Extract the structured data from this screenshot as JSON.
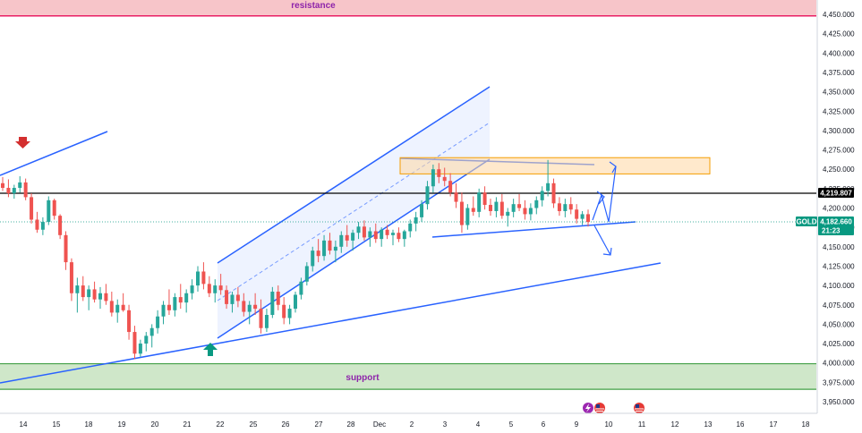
{
  "chart_data": {
    "type": "candlestick",
    "symbol": "GOLD",
    "last_price": "4,182.660",
    "countdown": "21:23",
    "black_line_price": "4,219.807",
    "ylim": [
      3940,
      4465
    ],
    "y_ticks": [
      "4,450.000",
      "4,425.000",
      "4,400.000",
      "4,375.000",
      "4,350.000",
      "4,325.000",
      "4,300.000",
      "4,275.000",
      "4,250.000",
      "4,225.000",
      "4,200.000",
      "4,175.000",
      "4,150.000",
      "4,125.000",
      "4,100.000",
      "4,075.000",
      "4,050.000",
      "4,025.000",
      "4,000.000",
      "3,975.000",
      "3,950.000"
    ],
    "x_ticks": [
      "14",
      "15",
      "18",
      "19",
      "20",
      "21",
      "22",
      "25",
      "26",
      "27",
      "28",
      "Dec",
      "2",
      "3",
      "4",
      "5",
      "6",
      "9",
      "10",
      "11",
      "12",
      "13",
      "16",
      "17",
      "18"
    ],
    "zones": {
      "resistance": {
        "label": "resistance",
        "from": 4448,
        "to": 4470,
        "color": "#f7c5c9"
      },
      "support": {
        "label": "support",
        "from": 3966,
        "to": 3999,
        "color": "#cfe7c9"
      },
      "sell_box": {
        "from": 4244,
        "to": 4265,
        "color": "#ffd7a3"
      }
    },
    "colors": {
      "up": "#26a69a",
      "down": "#ef5350",
      "trend": "#2962ff",
      "price_tag": "#089981",
      "resistance_line": "#e91e63",
      "support_line": "#43a047"
    },
    "candles": [
      [
        4232,
        4240,
        4222,
        4226
      ],
      [
        4226,
        4237,
        4214,
        4219
      ],
      [
        4219,
        4230,
        4212,
        4226
      ],
      [
        4226,
        4241,
        4220,
        4233
      ],
      [
        4233,
        4238,
        4210,
        4214
      ],
      [
        4214,
        4219,
        4180,
        4185
      ],
      [
        4185,
        4195,
        4168,
        4172
      ],
      [
        4172,
        4188,
        4165,
        4182
      ],
      [
        4182,
        4215,
        4178,
        4210
      ],
      [
        4210,
        4212,
        4185,
        4190
      ],
      [
        4190,
        4192,
        4160,
        4165
      ],
      [
        4165,
        4170,
        4120,
        4130
      ],
      [
        4130,
        4135,
        4080,
        4090
      ],
      [
        4090,
        4110,
        4065,
        4100
      ],
      [
        4100,
        4112,
        4080,
        4085
      ],
      [
        4085,
        4100,
        4068,
        4095
      ],
      [
        4095,
        4105,
        4078,
        4082
      ],
      [
        4082,
        4098,
        4070,
        4090
      ],
      [
        4090,
        4102,
        4075,
        4080
      ],
      [
        4080,
        4092,
        4060,
        4065
      ],
      [
        4065,
        4082,
        4052,
        4075
      ],
      [
        4075,
        4090,
        4066,
        4068
      ],
      [
        4068,
        4075,
        4030,
        4040
      ],
      [
        4040,
        4048,
        4005,
        4012
      ],
      [
        4012,
        4030,
        4008,
        4025
      ],
      [
        4025,
        4040,
        4015,
        4035
      ],
      [
        4035,
        4050,
        4020,
        4045
      ],
      [
        4045,
        4068,
        4038,
        4060
      ],
      [
        4060,
        4080,
        4050,
        4075
      ],
      [
        4075,
        4095,
        4062,
        4068
      ],
      [
        4068,
        4090,
        4060,
        4085
      ],
      [
        4085,
        4102,
        4070,
        4078
      ],
      [
        4078,
        4095,
        4065,
        4090
      ],
      [
        4090,
        4108,
        4082,
        4100
      ],
      [
        4100,
        4125,
        4092,
        4118
      ],
      [
        4118,
        4130,
        4095,
        4102
      ],
      [
        4102,
        4112,
        4085,
        4090
      ],
      [
        4090,
        4108,
        4078,
        4100
      ],
      [
        4100,
        4115,
        4088,
        4094
      ],
      [
        4094,
        4100,
        4070,
        4076
      ],
      [
        4076,
        4092,
        4065,
        4088
      ],
      [
        4088,
        4098,
        4072,
        4080
      ],
      [
        4080,
        4090,
        4060,
        4066
      ],
      [
        4066,
        4080,
        4050,
        4075
      ],
      [
        4075,
        4090,
        4062,
        4070
      ],
      [
        4070,
        4082,
        4038,
        4045
      ],
      [
        4045,
        4070,
        4040,
        4062
      ],
      [
        4062,
        4098,
        4058,
        4092
      ],
      [
        4092,
        4100,
        4068,
        4075
      ],
      [
        4075,
        4085,
        4050,
        4058
      ],
      [
        4058,
        4075,
        4050,
        4070
      ],
      [
        4070,
        4092,
        4065,
        4088
      ],
      [
        4088,
        4110,
        4082,
        4105
      ],
      [
        4105,
        4130,
        4100,
        4125
      ],
      [
        4125,
        4150,
        4118,
        4145
      ],
      [
        4145,
        4160,
        4130,
        4138
      ],
      [
        4138,
        4165,
        4132,
        4158
      ],
      [
        4158,
        4168,
        4140,
        4145
      ],
      [
        4145,
        4158,
        4130,
        4150
      ],
      [
        4150,
        4170,
        4142,
        4165
      ],
      [
        4165,
        4178,
        4150,
        4158
      ],
      [
        4158,
        4172,
        4145,
        4168
      ],
      [
        4168,
        4182,
        4160,
        4176
      ],
      [
        4176,
        4184,
        4158,
        4162
      ],
      [
        4162,
        4175,
        4150,
        4170
      ],
      [
        4170,
        4180,
        4155,
        4160
      ],
      [
        4160,
        4175,
        4150,
        4172
      ],
      [
        4172,
        4178,
        4160,
        4165
      ],
      [
        4165,
        4172,
        4152,
        4168
      ],
      [
        4168,
        4175,
        4156,
        4160
      ],
      [
        4160,
        4172,
        4150,
        4170
      ],
      [
        4170,
        4185,
        4162,
        4180
      ],
      [
        4180,
        4195,
        4170,
        4188
      ],
      [
        4188,
        4210,
        4182,
        4205
      ],
      [
        4205,
        4235,
        4198,
        4228
      ],
      [
        4228,
        4256,
        4220,
        4250
      ],
      [
        4250,
        4258,
        4232,
        4240
      ],
      [
        4240,
        4252,
        4228,
        4235
      ],
      [
        4235,
        4245,
        4215,
        4220
      ],
      [
        4220,
        4232,
        4200,
        4208
      ],
      [
        4208,
        4220,
        4168,
        4178
      ],
      [
        4178,
        4205,
        4172,
        4200
      ],
      [
        4200,
        4215,
        4190,
        4195
      ],
      [
        4195,
        4225,
        4188,
        4220
      ],
      [
        4220,
        4228,
        4198,
        4204
      ],
      [
        4204,
        4212,
        4190,
        4196
      ],
      [
        4196,
        4214,
        4188,
        4208
      ],
      [
        4208,
        4218,
        4186,
        4190
      ],
      [
        4190,
        4200,
        4176,
        4195
      ],
      [
        4195,
        4212,
        4188,
        4205
      ],
      [
        4205,
        4218,
        4196,
        4200
      ],
      [
        4200,
        4210,
        4185,
        4192
      ],
      [
        4192,
        4206,
        4184,
        4200
      ],
      [
        4200,
        4215,
        4192,
        4210
      ],
      [
        4210,
        4228,
        4202,
        4222
      ],
      [
        4222,
        4262,
        4215,
        4232
      ],
      [
        4232,
        4238,
        4200,
        4206
      ],
      [
        4206,
        4214,
        4190,
        4196
      ],
      [
        4196,
        4212,
        4188,
        4205
      ],
      [
        4205,
        4214,
        4192,
        4198
      ],
      [
        4198,
        4205,
        4180,
        4186
      ],
      [
        4186,
        4196,
        4178,
        4192
      ],
      [
        4192,
        4198,
        4176,
        4182
      ]
    ]
  }
}
